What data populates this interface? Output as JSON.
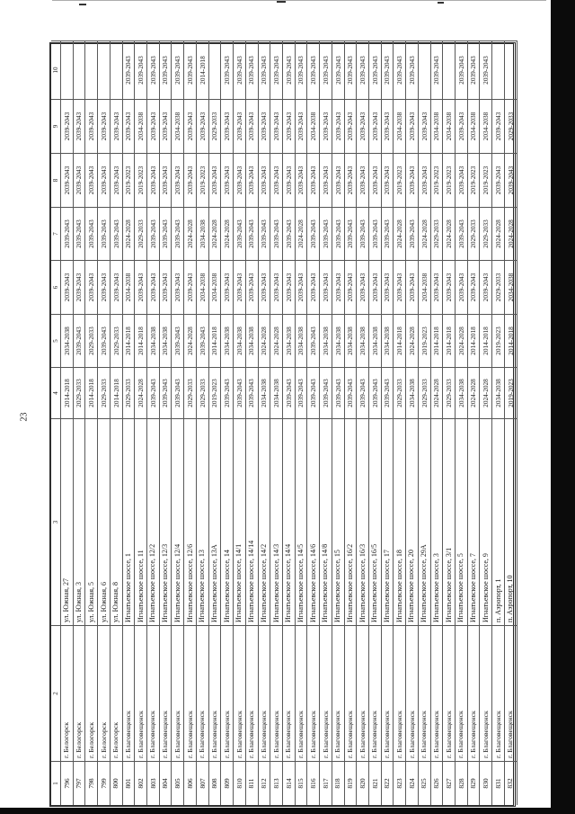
{
  "page": {
    "number": "23"
  },
  "table": {
    "headers": [
      "1",
      "2",
      "3",
      "4",
      "5",
      "6",
      "7",
      "8",
      "9",
      "10"
    ],
    "rows": [
      [
        "796",
        "г. Белогорск",
        "ул. Южная, 27",
        "2014-2018",
        "2034-2038",
        "2039-2043",
        "2039-2043",
        "2039-2043",
        "2039-2043",
        ""
      ],
      [
        "797",
        "г. Белогорск",
        "ул. Южная, 3",
        "2029-2033",
        "2039-2043",
        "2039-2043",
        "2039-2043",
        "2039-2043",
        "2039-2043",
        ""
      ],
      [
        "798",
        "г. Белогорск",
        "ул. Южная, 5",
        "2014-2018",
        "2029-2033",
        "2039-2043",
        "2039-2043",
        "2039-2043",
        "2039-2043",
        ""
      ],
      [
        "799",
        "г. Белогорск",
        "ул. Южная, 6",
        "2029-2033",
        "2039-2043",
        "2039-2043",
        "2039-2043",
        "2039-2043",
        "2039-2043",
        ""
      ],
      [
        "800",
        "г. Белогорск",
        "ул. Южная, 8",
        "2014-2018",
        "2029-2033",
        "2039-2043",
        "2039-2043",
        "2039-2043",
        "2039-2043",
        ""
      ],
      [
        "801",
        "г. Благовещенск",
        "Игнатьевское шоссе, 1",
        "2029-2033",
        "2014-2018",
        "2034-2038",
        "2024-2028",
        "2019-2023",
        "2039-2043",
        "2039-2043"
      ],
      [
        "802",
        "г. Благовещенск",
        "Игнатьевское шоссе, 11",
        "2024-2028",
        "2014-2018",
        "2039-2043",
        "2029-2033",
        "2019-2023",
        "2034-2038",
        "2039-2043"
      ],
      [
        "803",
        "г. Благовещенск",
        "Игнатьевское шоссе, 12/2",
        "2039-2043",
        "2034-2038",
        "2039-2043",
        "2039-2043",
        "2039-2043",
        "2039-2043",
        "2039-2043"
      ],
      [
        "804",
        "г. Благовещенск",
        "Игнатьевское шоссе, 12/3",
        "2039-2043",
        "2034-2038",
        "2039-2043",
        "2039-2043",
        "2039-2043",
        "2039-2043",
        "2039-2043"
      ],
      [
        "805",
        "г. Благовещенск",
        "Игнатьевское шоссе, 12/4",
        "2039-2043",
        "2039-2043",
        "2039-2043",
        "2039-2043",
        "2039-2043",
        "2034-2038",
        "2039-2043"
      ],
      [
        "806",
        "г. Благовещенск",
        "Игнатьевское шоссе, 12/6",
        "2029-2033",
        "2024-2028",
        "2039-2043",
        "2024-2028",
        "2039-2043",
        "2039-2043",
        "2039-2043"
      ],
      [
        "807",
        "г. Благовещенск",
        "Игнатьевское шоссе, 13",
        "2029-2033",
        "2039-2043",
        "2034-2038",
        "2034-2038",
        "2019-2023",
        "2039-2043",
        "2014-2018"
      ],
      [
        "808",
        "г. Благовещенск",
        "Игнатьевское шоссе, 13А",
        "2019-2023",
        "2014-2018",
        "2034-2038",
        "2024-2028",
        "2039-2043",
        "2029-2033",
        ""
      ],
      [
        "809",
        "г. Благовещенск",
        "Игнатьевское шоссе, 14",
        "2039-2043",
        "2034-2038",
        "2039-2043",
        "2024-2028",
        "2039-2043",
        "2039-2043",
        "2039-2043"
      ],
      [
        "810",
        "г. Благовещенск",
        "Игнатьевское шоссе, 14/1",
        "2039-2043",
        "2034-2038",
        "2039-2043",
        "2039-2043",
        "2039-2043",
        "2039-2043",
        "2039-2043"
      ],
      [
        "811",
        "г. Благовещенск",
        "Игнатьевское шоссе, 14/14",
        "2039-2043",
        "2034-2038",
        "2039-2043",
        "2039-2043",
        "2039-2043",
        "2039-2043",
        "2039-2043"
      ],
      [
        "812",
        "г. Благовещенск",
        "Игнатьевское шоссе, 14/2",
        "2034-2038",
        "2024-2028",
        "2039-2043",
        "2039-2043",
        "2039-2043",
        "2039-2043",
        "2039-2043"
      ],
      [
        "813",
        "г. Благовещенск",
        "Игнатьевское шоссе, 14/3",
        "2034-2038",
        "2024-2028",
        "2039-2043",
        "2039-2043",
        "2039-2043",
        "2039-2043",
        "2039-2043"
      ],
      [
        "814",
        "г. Благовещенск",
        "Игнатьевское шоссе, 14/4",
        "2039-2043",
        "2034-2038",
        "2039-2043",
        "2039-2043",
        "2039-2043",
        "2039-2043",
        "2039-2043"
      ],
      [
        "815",
        "г. Благовещенск",
        "Игнатьевское шоссе, 14/5",
        "2039-2043",
        "2034-2038",
        "2039-2043",
        "2024-2028",
        "2039-2043",
        "2039-2043",
        "2039-2043"
      ],
      [
        "816",
        "г. Благовещенск",
        "Игнатьевское шоссе, 14/6",
        "2039-2043",
        "2039-2043",
        "2039-2043",
        "2039-2043",
        "2039-2043",
        "2034-2038",
        "2039-2043"
      ],
      [
        "817",
        "г. Благовещенск",
        "Игнатьевское шоссе, 14/8",
        "2039-2043",
        "2034-2038",
        "2039-2043",
        "2039-2043",
        "2039-2043",
        "2039-2043",
        "2039-2043"
      ],
      [
        "818",
        "г. Благовещенск",
        "Игнатьевское шоссе, 15",
        "2039-2043",
        "2034-2038",
        "2039-2043",
        "2039-2043",
        "2039-2043",
        "2039-2043",
        "2039-2043"
      ],
      [
        "819",
        "г. Благовещенск",
        "Игнатьевское шоссе, 16/2",
        "2039-2043",
        "2034-2038",
        "2039-2043",
        "2039-2043",
        "2039-2043",
        "2039-2043",
        "2039-2043"
      ],
      [
        "820",
        "г. Благовещенск",
        "Игнатьевское шоссе, 16/3",
        "2039-2043",
        "2034-2038",
        "2039-2043",
        "2039-2043",
        "2039-2043",
        "2039-2043",
        "2039-2043"
      ],
      [
        "821",
        "г. Благовещенск",
        "Игнатьевское шоссе, 16/5",
        "2039-2043",
        "2034-2038",
        "2039-2043",
        "2039-2043",
        "2039-2043",
        "2039-2043",
        "2039-2043"
      ],
      [
        "822",
        "г. Благовещенск",
        "Игнатьевское шоссе, 17",
        "2039-2043",
        "2034-2038",
        "2039-2043",
        "2039-2043",
        "2039-2043",
        "2039-2043",
        "2039-2043"
      ],
      [
        "823",
        "г. Благовещенск",
        "Игнатьевское шоссе, 18",
        "2029-2033",
        "2014-2018",
        "2039-2043",
        "2024-2028",
        "2019-2023",
        "2034-2038",
        "2039-2043"
      ],
      [
        "824",
        "г. Благовещенск",
        "Игнатьевское шоссе, 20",
        "2034-2038",
        "2024-2028",
        "2039-2043",
        "2039-2043",
        "2039-2043",
        "2039-2043",
        "2039-2043"
      ],
      [
        "825",
        "г. Благовещенск",
        "Игнатьевское шоссе, 29А",
        "2029-2033",
        "2019-2023",
        "2034-2038",
        "2024-2028",
        "2039-2043",
        "2039-2043",
        ""
      ],
      [
        "826",
        "г. Благовещенск",
        "Игнатьевское шоссе, 3",
        "2024-2028",
        "2014-2018",
        "2039-2043",
        "2029-2033",
        "2019-2023",
        "2034-2038",
        "2039-2043"
      ],
      [
        "827",
        "г. Благовещенск",
        "Игнатьевское шоссе, 3/1",
        "2029-2033",
        "2014-2018",
        "2039-2043",
        "2024-2028",
        "2019-2023",
        "2034-2038",
        ""
      ],
      [
        "828",
        "г. Благовещенск",
        "Игнатьевское шоссе, 5",
        "2034-2038",
        "2024-2028",
        "2039-2043",
        "2039-2043",
        "2039-2043",
        "2039-2043",
        "2039-2043"
      ],
      [
        "829",
        "г. Благовещенск",
        "Игнатьевское шоссе, 7",
        "2024-2028",
        "2014-2018",
        "2039-2043",
        "2029-2033",
        "2019-2023",
        "2034-2038",
        "2039-2043"
      ],
      [
        "830",
        "г. Благовещенск",
        "Игнатьевское шоссе, 9",
        "2024-2028",
        "2014-2018",
        "2039-2043",
        "2029-2033",
        "2019-2023",
        "2034-2038",
        "2039-2043"
      ],
      [
        "831",
        "г. Благовещенск",
        "п. Аэропорт, 1",
        "2034-2038",
        "2019-2023",
        "2029-2033",
        "2024-2028",
        "2039-2043",
        "2039-2043",
        ""
      ],
      [
        "832",
        "г. Благовещенск",
        "п. Аэропорт, 10",
        "2019-2023",
        "2014-2018",
        "2034-2038",
        "2024-2028",
        "2039-2043",
        "2029-2033",
        ""
      ]
    ]
  }
}
